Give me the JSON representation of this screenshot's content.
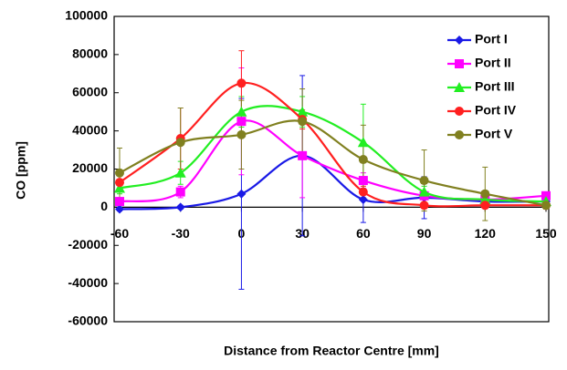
{
  "chart_data": {
    "type": "line",
    "x_label": "Distance from Reactor Centre [mm]",
    "y_label": "CO [ppm]",
    "x": [
      -60,
      -30,
      0,
      30,
      60,
      90,
      120,
      150
    ],
    "xlim": [
      -60,
      150
    ],
    "xticks": [
      -60,
      -30,
      0,
      30,
      60,
      90,
      120,
      150
    ],
    "ylim": [
      -60000,
      100000
    ],
    "yticks": [
      -60000,
      -40000,
      -20000,
      0,
      20000,
      40000,
      60000,
      80000,
      100000
    ],
    "smooth": true,
    "legend": "upper right",
    "series": [
      {
        "name": "Port I",
        "color": "#1a1ae6",
        "marker": "diamond",
        "values": [
          -1000,
          0,
          7000,
          27000,
          4000,
          5000,
          3000,
          3000
        ],
        "errors": [
          1000,
          1000,
          50000,
          42000,
          12000,
          11000,
          2000,
          2000
        ]
      },
      {
        "name": "Port II",
        "color": "#ff00ff",
        "marker": "square",
        "values": [
          3000,
          8000,
          45000,
          27000,
          14000,
          6000,
          4000,
          6000
        ],
        "errors": [
          2000,
          3000,
          28000,
          22000,
          4000,
          2000,
          1000,
          1000
        ]
      },
      {
        "name": "Port III",
        "color": "#22ee22",
        "marker": "triangle",
        "values": [
          10000,
          18000,
          50000,
          50000,
          34000,
          8000,
          4000,
          3000
        ],
        "errors": [
          3000,
          6000,
          8000,
          8000,
          20000,
          3000,
          2000,
          1000
        ]
      },
      {
        "name": "Port IV",
        "color": "#ff2020",
        "marker": "circle",
        "values": [
          13000,
          36000,
          65000,
          46000,
          8000,
          1000,
          1000,
          1000
        ],
        "errors": [
          4000,
          16000,
          17000,
          5000,
          3000,
          1000,
          1000,
          1000
        ]
      },
      {
        "name": "Port V",
        "color": "#808020",
        "marker": "circle",
        "values": [
          18000,
          34000,
          38000,
          45000,
          25000,
          14000,
          7000,
          1000
        ],
        "errors": [
          13000,
          18000,
          18000,
          17000,
          18000,
          16000,
          14000,
          2000
        ]
      }
    ]
  }
}
